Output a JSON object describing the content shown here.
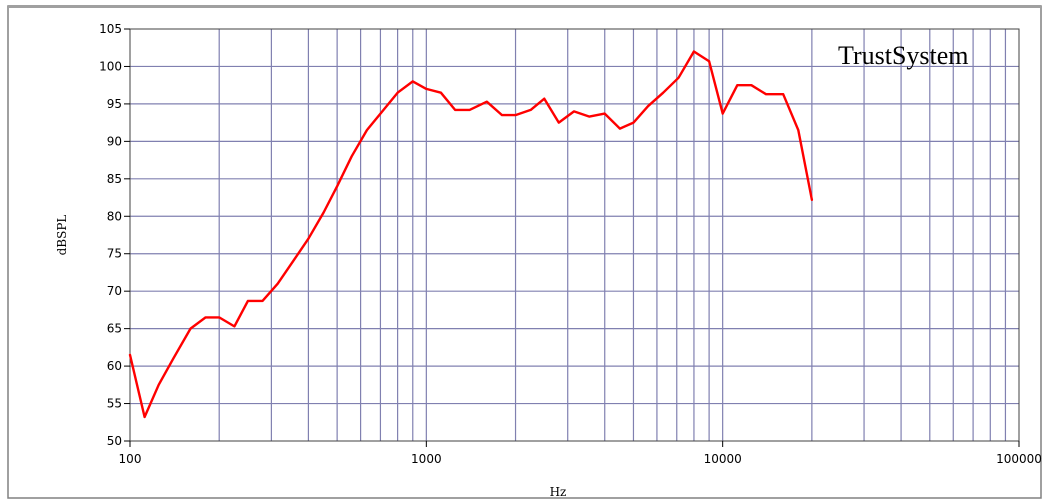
{
  "chart_data": {
    "type": "line",
    "watermark": "TrustSystem",
    "xlabel": "Hz",
    "ylabel": "dBSPL",
    "x_scale": "log",
    "xlim": [
      100,
      100000
    ],
    "ylim": [
      50,
      105
    ],
    "x_tick_labels": [
      "100",
      "1000",
      "10000",
      "100000"
    ],
    "x_tick_values": [
      100,
      1000,
      10000,
      100000
    ],
    "y_ticks": [
      50,
      55,
      60,
      65,
      70,
      75,
      80,
      85,
      90,
      95,
      100,
      105
    ],
    "grid": true,
    "series": [
      {
        "color": "#ff0000",
        "x": [
          100,
          112,
          125,
          140,
          160,
          180,
          200,
          225,
          250,
          280,
          315,
          355,
          400,
          450,
          500,
          560,
          630,
          710,
          800,
          900,
          1000,
          1120,
          1250,
          1400,
          1600,
          1800,
          2000,
          2250,
          2500,
          2800,
          3150,
          3550,
          4000,
          4500,
          5000,
          5600,
          6300,
          7100,
          8000,
          9000,
          10000,
          11200,
          12500,
          14000,
          16000,
          18000,
          20000
        ],
        "y": [
          61.5,
          53.2,
          57.5,
          61,
          65,
          66.5,
          66.5,
          65.3,
          68.7,
          68.7,
          71,
          74,
          77,
          80.5,
          84,
          88,
          91.5,
          94,
          96.5,
          98,
          97,
          96.5,
          94.2,
          94.2,
          95.3,
          93.5,
          93.5,
          94.2,
          95.7,
          92.5,
          94,
          93.3,
          93.7,
          91.7,
          92.5,
          94.7,
          96.5,
          98.5,
          102,
          100.7,
          93.7,
          97.5,
          97.5,
          96.3,
          96.3,
          91.5,
          82.2
        ]
      }
    ]
  },
  "colors": {
    "grid": "#8080b0",
    "line": "#ff0000",
    "frame": "#808080"
  }
}
